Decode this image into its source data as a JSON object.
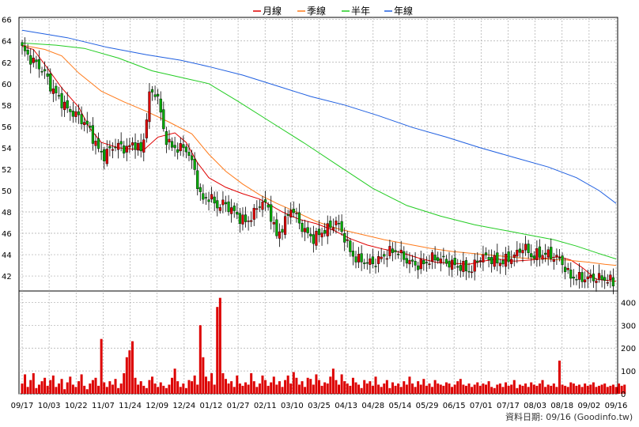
{
  "chart_data": [
    {
      "type": "candlestick",
      "y_ticks": [
        "42",
        "44",
        "46",
        "48",
        "50",
        "52",
        "54",
        "56",
        "58",
        "60",
        "62",
        "64",
        "66"
      ],
      "ylim": [
        40.6,
        66.2
      ],
      "x_ticks": [
        "09/17",
        "10/03",
        "10/22",
        "11/07",
        "11/24",
        "12/09",
        "12/24",
        "01/12",
        "01/27",
        "02/11",
        "03/10",
        "03/25",
        "04/13",
        "04/28",
        "05/14",
        "05/29",
        "06/15",
        "07/01",
        "07/17",
        "08/03",
        "08/18",
        "09/02",
        "09/16"
      ],
      "legend": [
        {
          "label": "月線",
          "color": "#e00000"
        },
        {
          "label": "季線",
          "color": "#ff7a1a"
        },
        {
          "label": "半年",
          "color": "#22cc22"
        },
        {
          "label": "年線",
          "color": "#1f5fe0"
        }
      ],
      "colors": {
        "up": "#dd0000",
        "down": "#00aa00",
        "grid": "#aaaaaa"
      },
      "anchor_closes": [
        63.3,
        62.4,
        61.8,
        61.0,
        59.5,
        58.6,
        57.6,
        57.2,
        56.6,
        55.8,
        54.0,
        53.2,
        54.1,
        54.2,
        53.9,
        54.5,
        53.5,
        58.9,
        59.3,
        55.2,
        54.0,
        54.0,
        53.9,
        52.0,
        49.0,
        49.5,
        48.5,
        48.8,
        48.2,
        47.5,
        47.0,
        47.9,
        49.0,
        48.3,
        45.7,
        46.8,
        48.5,
        47.0,
        46.0,
        45.5,
        46.1,
        46.5,
        47.1,
        45.8,
        44.0,
        43.5,
        43.3,
        43.2,
        43.7,
        44.2,
        44.4,
        43.7,
        43.2,
        43.0,
        43.3,
        43.7,
        43.6,
        43.2,
        43.0,
        42.8,
        42.4,
        43.7,
        43.8,
        43.4,
        43.3,
        43.6,
        44.0,
        44.8,
        43.9,
        44.0,
        44.1,
        43.8,
        43.5,
        42.1,
        41.8,
        41.8,
        41.8,
        41.8,
        41.7,
        41.4
      ],
      "ma_lines": [
        {
          "name": "月線",
          "color": "#e00000",
          "points": [
            [
              0,
              63.5
            ],
            [
              4,
              63.2
            ],
            [
              8,
              61.8
            ],
            [
              14,
              59.6
            ],
            [
              20,
              57.8
            ],
            [
              24,
              55.8
            ],
            [
              28,
              54.5
            ],
            [
              34,
              54.0
            ],
            [
              38,
              53.9
            ],
            [
              43,
              53.8
            ],
            [
              48,
              55.0
            ],
            [
              54,
              55.4
            ],
            [
              58,
              54.5
            ],
            [
              62,
              52.6
            ],
            [
              66,
              51.2
            ],
            [
              72,
              50.3
            ],
            [
              78,
              49.7
            ],
            [
              84,
              49.2
            ],
            [
              92,
              48.0
            ],
            [
              98,
              47.3
            ],
            [
              104,
              46.9
            ],
            [
              110,
              46.3
            ],
            [
              116,
              45.5
            ],
            [
              122,
              44.9
            ],
            [
              128,
              44.5
            ],
            [
              134,
              44.2
            ],
            [
              140,
              43.7
            ],
            [
              146,
              43.3
            ],
            [
              152,
              43.2
            ],
            [
              158,
              43.1
            ],
            [
              163,
              43.4
            ],
            [
              168,
              43.6
            ],
            [
              174,
              43.4
            ],
            [
              180,
              43.5
            ],
            [
              186,
              43.7
            ],
            [
              190,
              43.8
            ],
            [
              194,
              43.5
            ],
            [
              198,
              42.8
            ],
            [
              203,
              41.7
            ],
            [
              210,
              41.5
            ]
          ]
        },
        {
          "name": "季線",
          "color": "#ff7a1a",
          "points": [
            [
              0,
              63.6
            ],
            [
              8,
              63.2
            ],
            [
              14,
              62.6
            ],
            [
              20,
              61.0
            ],
            [
              28,
              59.3
            ],
            [
              36,
              58.3
            ],
            [
              44,
              57.4
            ],
            [
              52,
              56.4
            ],
            [
              60,
              55.3
            ],
            [
              66,
              53.4
            ],
            [
              72,
              51.8
            ],
            [
              78,
              50.6
            ],
            [
              84,
              49.6
            ],
            [
              90,
              48.8
            ],
            [
              96,
              48.1
            ],
            [
              104,
              47.1
            ],
            [
              112,
              46.4
            ],
            [
              120,
              45.9
            ],
            [
              128,
              45.4
            ],
            [
              136,
              45.0
            ],
            [
              144,
              44.6
            ],
            [
              152,
              44.3
            ],
            [
              160,
              44.1
            ],
            [
              168,
              43.9
            ],
            [
              176,
              43.7
            ],
            [
              184,
              43.6
            ],
            [
              192,
              43.5
            ],
            [
              200,
              43.3
            ],
            [
              206,
              43.1
            ],
            [
              210,
              43.0
            ]
          ]
        },
        {
          "name": "半年",
          "color": "#22cc22",
          "points": [
            [
              0,
              63.8
            ],
            [
              12,
              63.6
            ],
            [
              22,
              63.3
            ],
            [
              34,
              62.4
            ],
            [
              46,
              61.2
            ],
            [
              56,
              60.6
            ],
            [
              66,
              60.0
            ],
            [
              76,
              58.4
            ],
            [
              88,
              56.4
            ],
            [
              100,
              54.4
            ],
            [
              112,
              52.3
            ],
            [
              124,
              50.2
            ],
            [
              136,
              48.6
            ],
            [
              148,
              47.6
            ],
            [
              160,
              46.8
            ],
            [
              172,
              46.2
            ],
            [
              180,
              45.8
            ],
            [
              188,
              45.4
            ],
            [
              196,
              44.8
            ],
            [
              204,
              44.1
            ],
            [
              210,
              43.6
            ]
          ]
        },
        {
          "name": "年線",
          "color": "#1f5fe0",
          "points": [
            [
              0,
              65.0
            ],
            [
              16,
              64.3
            ],
            [
              30,
              63.4
            ],
            [
              44,
              62.7
            ],
            [
              56,
              62.2
            ],
            [
              66,
              61.6
            ],
            [
              78,
              60.8
            ],
            [
              90,
              59.8
            ],
            [
              102,
              58.8
            ],
            [
              114,
              58.0
            ],
            [
              126,
              57.0
            ],
            [
              138,
              55.9
            ],
            [
              150,
              55.0
            ],
            [
              162,
              54.0
            ],
            [
              174,
              53.1
            ],
            [
              186,
              52.2
            ],
            [
              196,
              51.2
            ],
            [
              204,
              50.0
            ],
            [
              210,
              48.8
            ]
          ]
        }
      ]
    },
    {
      "type": "bar",
      "y_ticks": [
        "0",
        "100",
        "200",
        "300",
        "400"
      ],
      "ylim": [
        0,
        450
      ],
      "volumes": [
        45,
        85,
        30,
        60,
        90,
        25,
        40,
        55,
        70,
        35,
        60,
        80,
        30,
        45,
        65,
        20,
        50,
        75,
        40,
        30,
        55,
        85,
        35,
        20,
        45,
        60,
        70,
        35,
        240,
        50,
        30,
        55,
        40,
        65,
        25,
        45,
        90,
        160,
        190,
        230,
        70,
        40,
        55,
        35,
        25,
        60,
        75,
        45,
        30,
        50,
        35,
        25,
        40,
        70,
        110,
        55,
        30,
        45,
        25,
        60,
        55,
        80,
        40,
        300,
        160,
        75,
        55,
        90,
        40,
        380,
        420,
        90,
        65,
        45,
        55,
        30,
        80,
        45,
        35,
        50,
        40,
        90,
        55,
        30,
        45,
        80,
        60,
        35,
        50,
        75,
        40,
        55,
        30,
        60,
        80,
        45,
        95,
        70,
        40,
        55,
        30,
        70,
        65,
        40,
        85,
        60,
        35,
        50,
        45,
        75,
        110,
        60,
        40,
        85,
        55,
        45,
        35,
        70,
        50,
        40,
        25,
        60,
        45,
        55,
        35,
        75,
        40,
        30,
        45,
        60,
        25,
        50,
        35,
        45,
        30,
        55,
        40,
        75,
        45,
        30,
        55,
        40,
        65,
        35,
        45,
        30,
        60,
        45,
        40,
        35,
        50,
        45,
        30,
        40,
        55,
        65,
        40,
        35,
        45,
        30,
        40,
        50,
        35,
        45,
        40,
        55,
        30,
        25,
        40,
        45,
        30,
        50,
        35,
        40,
        60,
        25,
        40,
        35,
        45,
        30,
        50,
        40,
        35,
        45,
        60,
        30,
        40,
        35,
        45,
        30,
        145,
        40,
        35,
        30,
        50,
        45,
        35,
        40,
        30,
        45,
        35,
        40,
        50,
        30,
        35,
        40,
        45,
        30,
        35,
        40,
        30,
        45,
        35,
        40
      ]
    }
  ],
  "source": "資料日期: 09/16  (Goodinfo.tw)"
}
